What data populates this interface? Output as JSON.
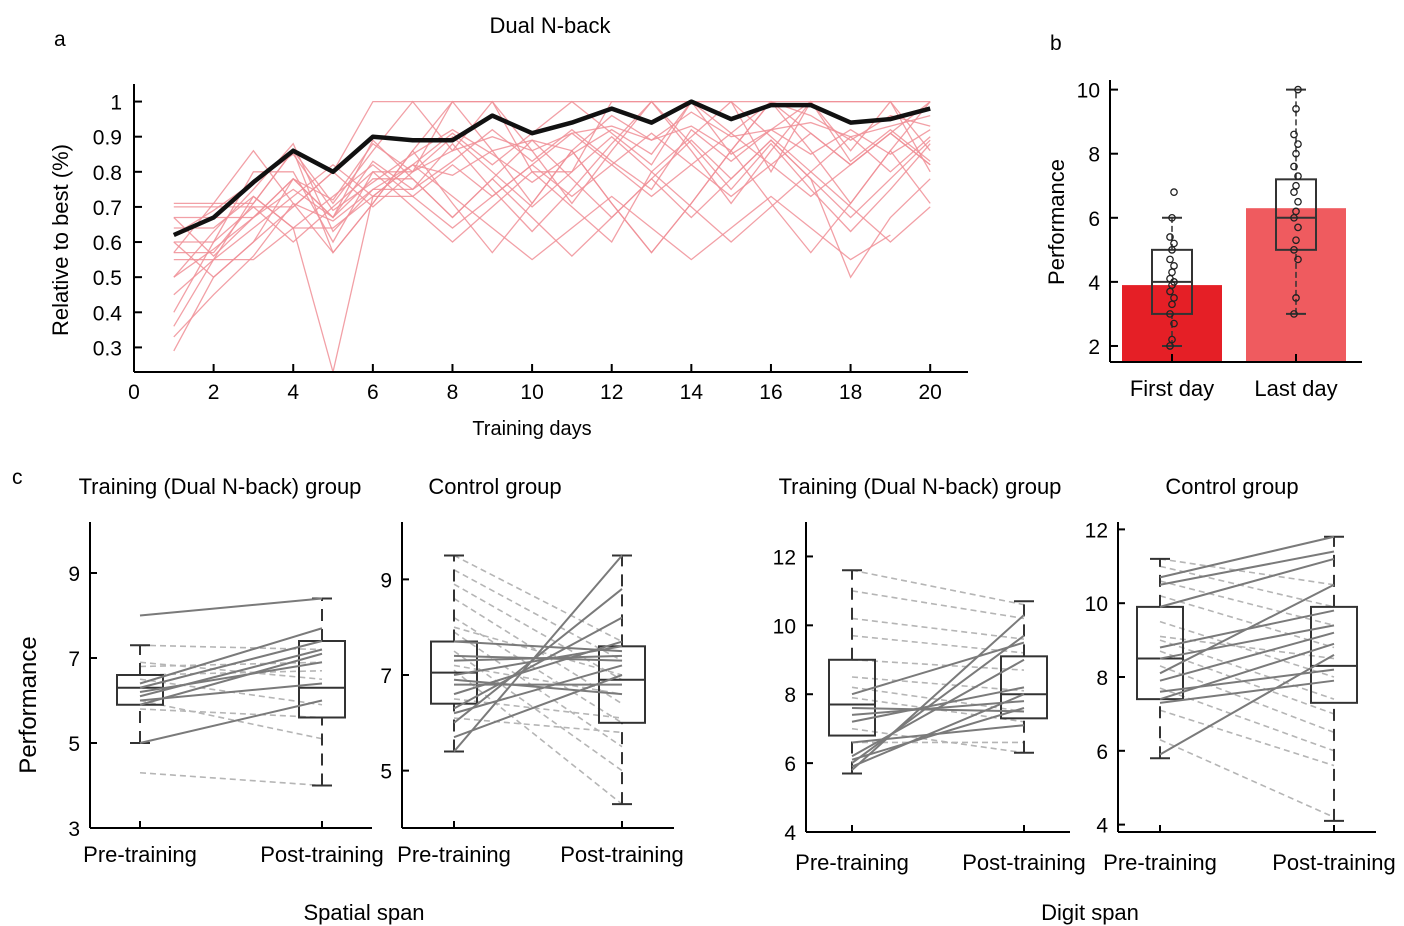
{
  "figure": {
    "panel_a_label": "a",
    "panel_b_label": "b",
    "panel_c_label": "c",
    "spatial_span_label": "Spatial span",
    "digit_span_label": "Digit span"
  },
  "colors": {
    "individual_line": "#f08f96",
    "mean_line": "#111111",
    "first_day_bar": "#e51f26",
    "last_day_bar": "#ef5b5f",
    "solid_subject": "#7a7a7a",
    "dashed_subject": "#b5b5b5"
  },
  "chart_data": [
    {
      "id": "a",
      "type": "line",
      "title": "Dual N-back",
      "xlabel": "Training days",
      "ylabel": "Relative to best (%)",
      "xlim": [
        0,
        21
      ],
      "ylim": [
        0.23,
        1.05
      ],
      "xticks": [
        0,
        2,
        4,
        6,
        8,
        10,
        12,
        14,
        16,
        18,
        20
      ],
      "yticks": [
        0.3,
        0.4,
        0.5,
        0.6,
        0.7,
        0.8,
        0.9,
        1
      ],
      "mean_series": {
        "x": [
          1,
          2,
          3,
          4,
          5,
          6,
          7,
          8,
          9,
          10,
          11,
          12,
          13,
          14,
          15,
          16,
          17,
          18,
          19,
          20
        ],
        "y": [
          0.62,
          0.67,
          0.77,
          0.86,
          0.8,
          0.9,
          0.89,
          0.89,
          0.96,
          0.91,
          0.94,
          0.98,
          0.94,
          1.0,
          0.95,
          0.99,
          0.99,
          0.94,
          0.95,
          0.98
        ]
      },
      "individual_series": [
        [
          0.29,
          0.5,
          0.6,
          0.78,
          0.72,
          0.88,
          0.8,
          0.86,
          0.9,
          0.86,
          0.91,
          0.93,
          0.89,
          0.97,
          0.9,
          0.92,
          0.94,
          0.9,
          0.93,
          0.96
        ],
        [
          0.33,
          0.45,
          0.56,
          0.71,
          0.66,
          0.75,
          0.82,
          0.79,
          0.86,
          0.89,
          0.86,
          0.96,
          0.89,
          0.93,
          0.86,
          1.0,
          0.96,
          0.89,
          0.96,
          0.93
        ],
        [
          0.4,
          0.6,
          0.8,
          0.8,
          0.6,
          0.8,
          0.8,
          1.0,
          1.0,
          0.8,
          0.8,
          1.0,
          1.0,
          1.0,
          1.0,
          0.8,
          1.0,
          1.0,
          1.0,
          0.8
        ],
        [
          0.45,
          0.55,
          0.64,
          0.73,
          0.82,
          0.73,
          0.82,
          0.91,
          0.82,
          0.91,
          1.0,
          0.91,
          0.82,
          1.0,
          0.91,
          1.0,
          0.91,
          0.82,
          0.91,
          1.0
        ],
        [
          0.5,
          0.58,
          0.67,
          0.75,
          0.67,
          0.83,
          0.75,
          0.83,
          0.92,
          0.83,
          0.92,
          0.83,
          0.75,
          0.92,
          0.83,
          0.92,
          1.0,
          0.83,
          0.92,
          0.83
        ],
        [
          0.55,
          0.55,
          0.55,
          0.64,
          0.64,
          0.73,
          0.73,
          0.64,
          0.73,
          0.82,
          0.73,
          0.82,
          0.91,
          0.82,
          0.73,
          0.82,
          0.91,
          0.82,
          0.91,
          0.82
        ],
        [
          0.57,
          0.57,
          0.71,
          0.86,
          0.71,
          0.86,
          1.0,
          0.86,
          1.0,
          0.86,
          0.71,
          0.86,
          1.0,
          0.86,
          0.71,
          0.86,
          1.0,
          0.86,
          1.0,
          0.86
        ],
        [
          0.6,
          0.6,
          0.7,
          0.7,
          0.8,
          0.7,
          0.8,
          0.9,
          0.8,
          0.7,
          0.8,
          0.9,
          0.8,
          0.9,
          1.0,
          0.9,
          0.8,
          0.9,
          0.8,
          0.9
        ],
        [
          0.62,
          0.69,
          0.77,
          0.85,
          0.69,
          0.77,
          0.85,
          0.92,
          0.85,
          0.77,
          0.85,
          0.92,
          0.85,
          1.0,
          0.85,
          0.92,
          0.85,
          0.92,
          0.85,
          0.92
        ],
        [
          0.64,
          0.64,
          0.73,
          0.64,
          0.73,
          0.82,
          0.73,
          0.82,
          0.73,
          0.82,
          0.91,
          0.82,
          0.73,
          0.82,
          0.91,
          0.82,
          0.73,
          0.82,
          0.91,
          0.82
        ],
        [
          0.67,
          0.67,
          0.67,
          0.78,
          0.67,
          0.78,
          0.78,
          0.67,
          0.78,
          0.89,
          0.78,
          0.67,
          0.78,
          0.89,
          0.78,
          0.89,
          0.78,
          0.67,
          0.78,
          0.89
        ],
        [
          0.7,
          0.7,
          0.7,
          0.6,
          0.7,
          0.8,
          0.7,
          0.6,
          0.7,
          0.8,
          0.7,
          0.6,
          0.8,
          0.7,
          0.6,
          0.7,
          0.8,
          0.7,
          0.6,
          0.7
        ],
        [
          0.71,
          0.71,
          0.71,
          0.86,
          0.57,
          0.71,
          0.86,
          0.71,
          0.57,
          0.71,
          0.86,
          0.71,
          0.57,
          0.71,
          0.86,
          0.71,
          0.57,
          0.71,
          0.86,
          0.71
        ],
        [
          0.5,
          0.63,
          0.75,
          0.88,
          0.63,
          0.75,
          0.75,
          0.88,
          0.75,
          0.63,
          0.75,
          0.88,
          1.0,
          0.88,
          0.75,
          0.88,
          0.75,
          0.63,
          0.75,
          0.88
        ],
        [
          0.36,
          0.55,
          0.73,
          0.64,
          0.23,
          0.73,
          0.82,
          0.73,
          0.64,
          0.55,
          0.64,
          0.73,
          0.64,
          0.55,
          0.64,
          0.73,
          0.64,
          0.55,
          0.62,
          null
        ],
        [
          0.6,
          0.5,
          0.6,
          0.7,
          0.8,
          1.0,
          1.0,
          1.0,
          1.0,
          1.0,
          1.0,
          1.0,
          1.0,
          1.0,
          1.0,
          1.0,
          1.0,
          1.0,
          1.0,
          1.0
        ],
        [
          0.67,
          0.56,
          0.67,
          0.78,
          0.67,
          0.89,
          0.78,
          0.67,
          0.78,
          0.67,
          0.56,
          0.67,
          0.78,
          0.67,
          0.78,
          0.89,
          0.78,
          0.5,
          0.67,
          0.78
        ],
        [
          0.57,
          0.71,
          0.86,
          0.71,
          0.57,
          0.71,
          0.86,
          1.0,
          0.86,
          0.71,
          0.86,
          0.71,
          0.57,
          0.71,
          0.86,
          1.0,
          0.86,
          0.71,
          0.86,
          1.0
        ]
      ]
    },
    {
      "id": "b",
      "type": "bar",
      "ylabel": "Performance",
      "categories": [
        "First day",
        "Last day"
      ],
      "values": [
        3.9,
        6.3
      ],
      "ylim": [
        1.5,
        10.3
      ],
      "yticks": [
        2,
        4,
        6,
        8,
        10
      ],
      "boxes": [
        {
          "whisker_low": 2,
          "q1": 3,
          "median": 4,
          "q3": 5,
          "whisker_high": 6
        },
        {
          "whisker_low": 3,
          "q1": 5,
          "median": 6,
          "q3": 7.2,
          "whisker_high": 10
        }
      ],
      "points": [
        [
          2,
          2.2,
          2.7,
          3,
          3.3,
          3.5,
          3.7,
          3.9,
          4,
          4.1,
          4.3,
          4.5,
          4.7,
          5,
          5.2,
          5.4,
          6,
          6.8
        ],
        [
          3,
          3.5,
          4.7,
          5,
          5.3,
          5.7,
          6,
          6.2,
          6.5,
          6.8,
          7,
          7.3,
          7.6,
          8,
          8.3,
          8.6,
          9.4,
          10
        ]
      ]
    },
    {
      "id": "c1",
      "type": "box",
      "title": "Training (Dual N-back) group",
      "ylabel": "Performance",
      "categories": [
        "Pre-training",
        "Post-training"
      ],
      "ylim": [
        3,
        10.2
      ],
      "yticks": [
        3,
        5,
        7,
        9
      ],
      "boxes": [
        {
          "whisker_low": 5,
          "q1": 5.9,
          "median": 6.3,
          "q3": 6.6,
          "whisker_high": 7.3
        },
        {
          "whisker_low": 4,
          "q1": 5.6,
          "median": 6.3,
          "q3": 7.4,
          "whisker_high": 8.4
        }
      ],
      "subjects_solid": [
        [
          8,
          8.4
        ],
        [
          6.4,
          7.7
        ],
        [
          6.3,
          7.4
        ],
        [
          6.1,
          7.2
        ],
        [
          5.9,
          7.1
        ],
        [
          5,
          6.0
        ],
        [
          6.2,
          6.9
        ],
        [
          6,
          6.4
        ]
      ],
      "subjects_dashed": [
        [
          4.3,
          4.0
        ],
        [
          7.3,
          7.2
        ],
        [
          6.8,
          6.9
        ],
        [
          6.6,
          6.7
        ],
        [
          6.5,
          5.9
        ],
        [
          6.0,
          5.1
        ],
        [
          5.8,
          5.6
        ],
        [
          6.9,
          6.5
        ]
      ]
    },
    {
      "id": "c2",
      "type": "box",
      "title": "Control group",
      "categories": [
        "Pre-training",
        "Post-training"
      ],
      "ylim": [
        3.8,
        10.2
      ],
      "yticks": [
        5,
        7,
        9
      ],
      "boxes": [
        {
          "whisker_low": 5.4,
          "q1": 6.4,
          "median": 7.05,
          "q3": 7.7,
          "whisker_high": 9.5
        },
        {
          "whisker_low": 4.3,
          "q1": 6.0,
          "median": 6.9,
          "q3": 7.6,
          "whisker_high": 9.5
        }
      ],
      "subjects_solid": [
        [
          5.4,
          9.5
        ],
        [
          6.0,
          8.8
        ],
        [
          6.3,
          8.2
        ],
        [
          6.6,
          7.7
        ],
        [
          7.0,
          7.6
        ],
        [
          7.3,
          7.4
        ],
        [
          6.2,
          7.2
        ],
        [
          5.7,
          7.0
        ],
        [
          6.8,
          6.8
        ],
        [
          7.4,
          7.3
        ],
        [
          6.9,
          6.6
        ],
        [
          7.7,
          7.5
        ]
      ],
      "subjects_dashed": [
        [
          9.5,
          7.7
        ],
        [
          9.2,
          7.3
        ],
        [
          8.9,
          6.9
        ],
        [
          8.6,
          6.4
        ],
        [
          8.2,
          6.0
        ],
        [
          7.9,
          5.5
        ],
        [
          7.5,
          5.0
        ],
        [
          7.1,
          4.3
        ],
        [
          6.5,
          6.1
        ],
        [
          6.1,
          5.8
        ],
        [
          7.2,
          6.6
        ],
        [
          8.0,
          7.0
        ]
      ]
    },
    {
      "id": "c3",
      "type": "box",
      "title": "Training (Dual N-back) group",
      "categories": [
        "Pre-training",
        "Post-training"
      ],
      "ylim": [
        4,
        13
      ],
      "yticks": [
        4,
        6,
        8,
        10,
        12
      ],
      "boxes": [
        {
          "whisker_low": 5.7,
          "q1": 6.8,
          "median": 7.7,
          "q3": 9.0,
          "whisker_high": 11.6
        },
        {
          "whisker_low": 6.3,
          "q1": 7.3,
          "median": 8.0,
          "q3": 9.1,
          "whisker_high": 10.7
        }
      ],
      "subjects_solid": [
        [
          5.8,
          10.3
        ],
        [
          6.0,
          9.7
        ],
        [
          6.2,
          9.0
        ],
        [
          5.9,
          8.0
        ],
        [
          6.1,
          7.6
        ],
        [
          7.2,
          8.2
        ],
        [
          7.6,
          7.5
        ],
        [
          8.0,
          9.5
        ],
        [
          6.6,
          7.1
        ],
        [
          7.4,
          7.8
        ]
      ],
      "subjects_dashed": [
        [
          11.6,
          10.6
        ],
        [
          11.0,
          10.2
        ],
        [
          10.2,
          9.6
        ],
        [
          9.7,
          9.2
        ],
        [
          9.0,
          8.7
        ],
        [
          8.5,
          8.1
        ],
        [
          8.2,
          7.5
        ],
        [
          7.9,
          7.2
        ],
        [
          7.0,
          6.3
        ],
        [
          6.6,
          6.6
        ]
      ]
    },
    {
      "id": "c4",
      "type": "box",
      "title": "Control group",
      "categories": [
        "Pre-training",
        "Post-training"
      ],
      "ylim": [
        3.8,
        12.2
      ],
      "yticks": [
        4,
        6,
        8,
        10,
        12
      ],
      "boxes": [
        {
          "whisker_low": 5.8,
          "q1": 7.4,
          "median": 8.5,
          "q3": 9.9,
          "whisker_high": 11.2
        },
        {
          "whisker_low": 4.1,
          "q1": 7.3,
          "median": 8.3,
          "q3": 9.9,
          "whisker_high": 11.8
        }
      ],
      "subjects_solid": [
        [
          10.7,
          11.8
        ],
        [
          10.5,
          11.4
        ],
        [
          9.9,
          11.2
        ],
        [
          8.1,
          10.5
        ],
        [
          8.8,
          9.8
        ],
        [
          8.5,
          9.4
        ],
        [
          7.9,
          9.2
        ],
        [
          7.4,
          8.9
        ],
        [
          5.9,
          8.6
        ],
        [
          7.6,
          8.2
        ],
        [
          7.3,
          7.9
        ]
      ],
      "subjects_dashed": [
        [
          11.2,
          10.5
        ],
        [
          11.0,
          9.9
        ],
        [
          10.6,
          9.4
        ],
        [
          10.2,
          8.8
        ],
        [
          9.5,
          8.0
        ],
        [
          9.0,
          7.4
        ],
        [
          8.7,
          7.0
        ],
        [
          8.3,
          6.5
        ],
        [
          7.7,
          6.0
        ],
        [
          7.1,
          5.6
        ],
        [
          6.3,
          4.2
        ],
        [
          9.1,
          8.5
        ]
      ]
    }
  ]
}
